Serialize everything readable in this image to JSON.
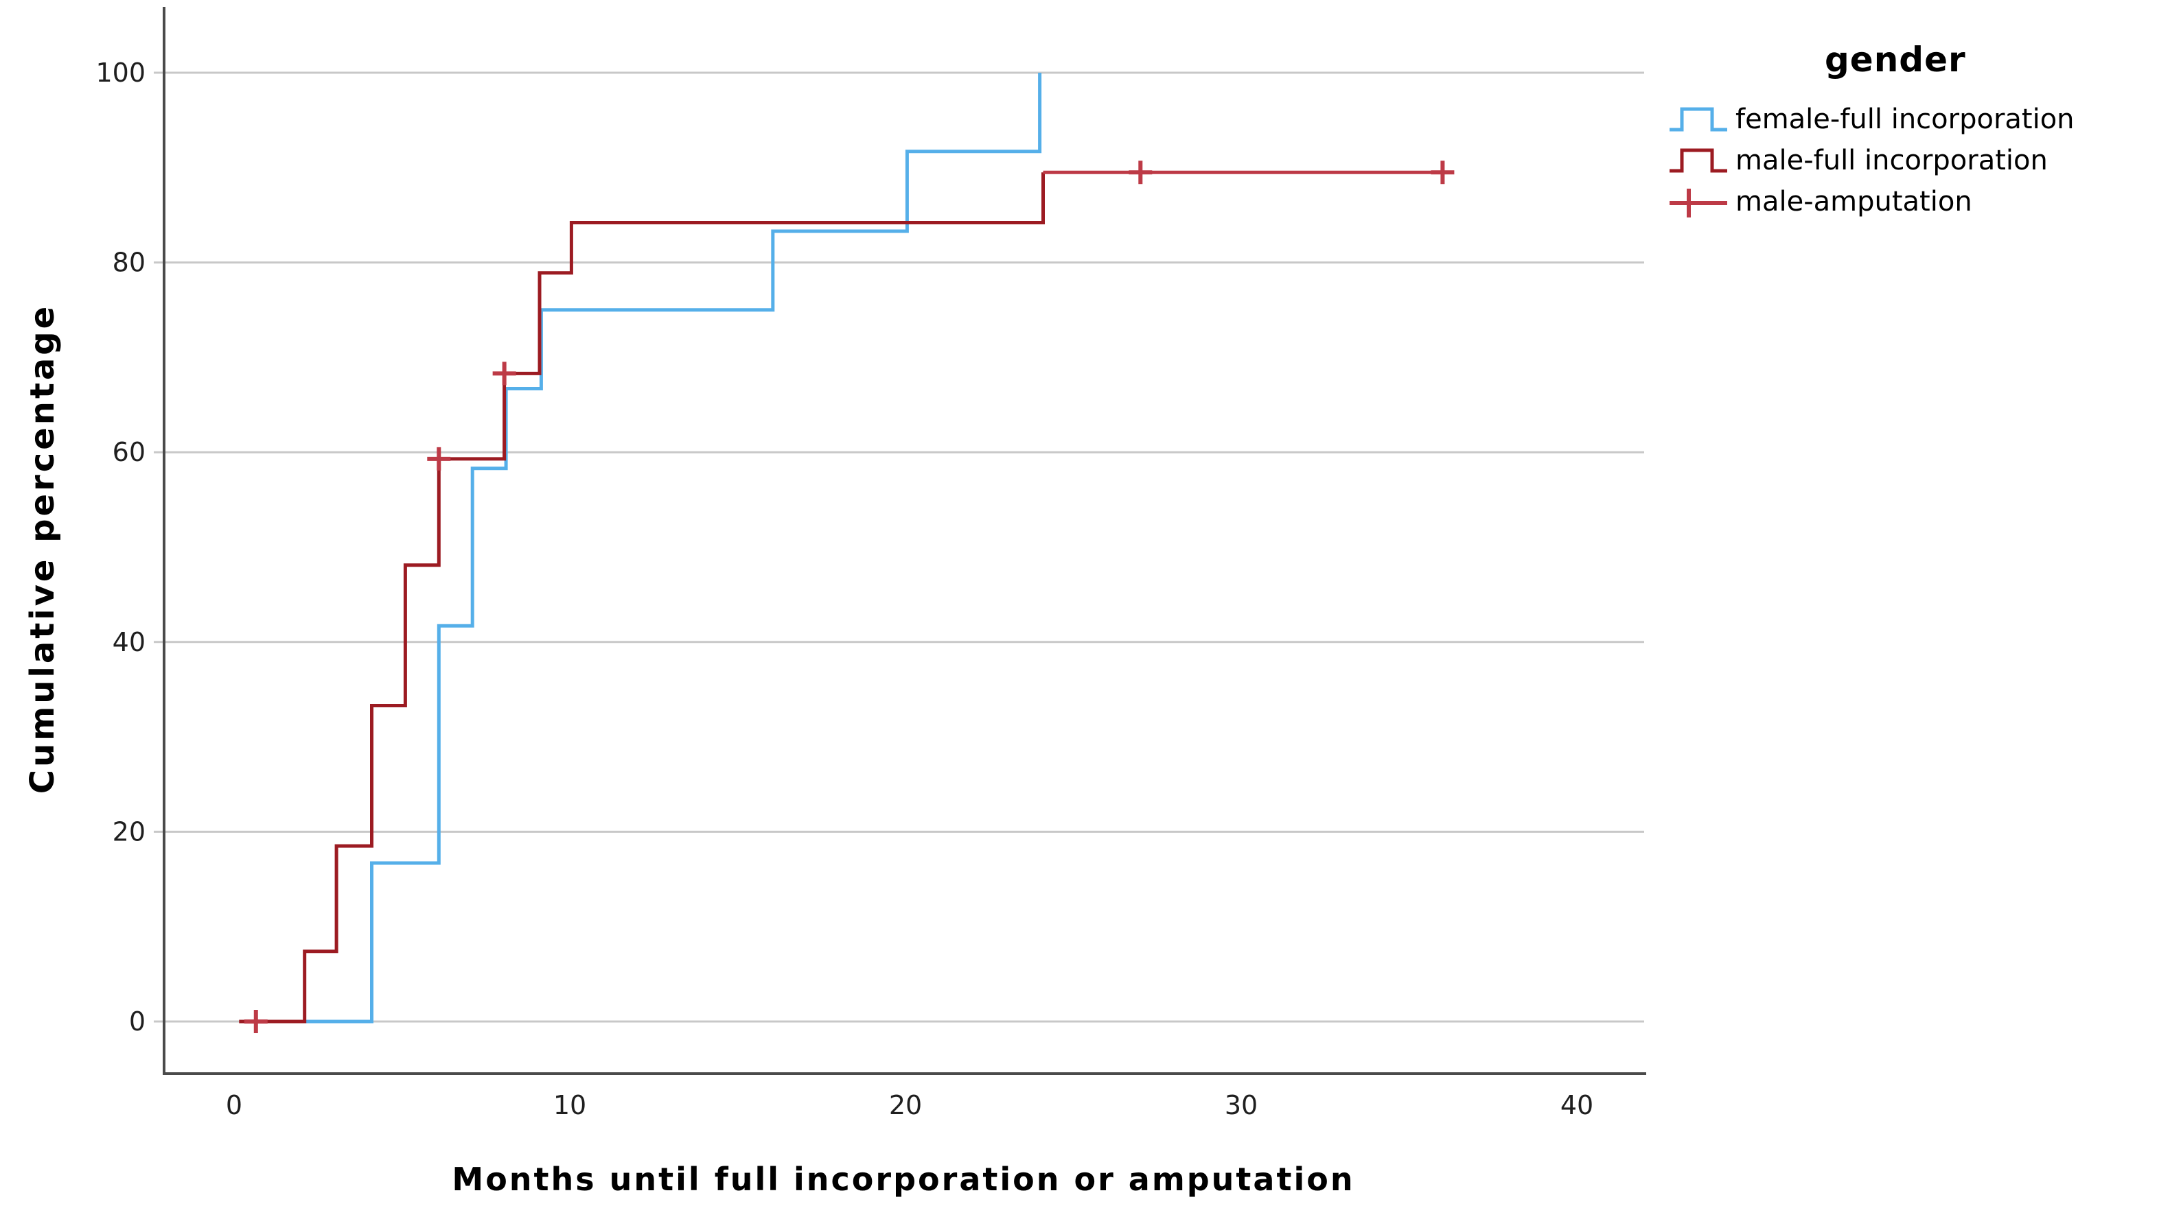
{
  "chart_data": {
    "type": "line",
    "subtype": "step-cumulative-incidence",
    "title": "",
    "xlabel": "Months until full incorporation or amputation",
    "ylabel": "Cumulative percentage",
    "xlim": [
      0,
      42
    ],
    "ylim": [
      0,
      100
    ],
    "x_ticks": [
      0,
      10,
      20,
      30,
      40
    ],
    "y_ticks": [
      0,
      20,
      40,
      60,
      80,
      100
    ],
    "grid": "horizontal",
    "grid_color": "#c8c8c8",
    "axis_color": "#4a4a4a",
    "legend_position": "top-right",
    "legend_title": "gender",
    "series": [
      {
        "name": "female-full incorporation",
        "color": "#55AFE9",
        "style": "step",
        "line_start": [
          2.1,
          0
        ],
        "steps": [
          [
            4.1,
            16.7
          ],
          [
            6.1,
            41.7
          ],
          [
            7.1,
            58.3
          ],
          [
            8.1,
            66.7
          ],
          [
            9.15,
            75.0
          ],
          [
            16.05,
            83.3
          ],
          [
            20.05,
            91.7
          ],
          [
            24.0,
            100.0
          ]
        ]
      },
      {
        "name": "male-full incorporation",
        "color": "#9C1B22",
        "style": "step",
        "line_start": [
          0.15,
          0
        ],
        "steps": [
          [
            2.1,
            7.4
          ],
          [
            3.05,
            18.5
          ],
          [
            4.1,
            33.3
          ],
          [
            5.1,
            48.1
          ],
          [
            6.1,
            59.3
          ],
          [
            8.05,
            68.3
          ],
          [
            9.1,
            78.9
          ],
          [
            10.05,
            84.2
          ],
          [
            24.1,
            89.5
          ]
        ]
      },
      {
        "name": "male-amputation",
        "color": "#BD3A46",
        "style": "censor-markers",
        "line": [
          [
            24.1,
            89.5
          ],
          [
            36.2,
            89.5
          ]
        ],
        "markers": [
          [
            0.65,
            0
          ],
          [
            6.1,
            59.3
          ],
          [
            8.05,
            68.3
          ],
          [
            27.0,
            89.5
          ],
          [
            36.0,
            89.5
          ]
        ]
      }
    ]
  }
}
